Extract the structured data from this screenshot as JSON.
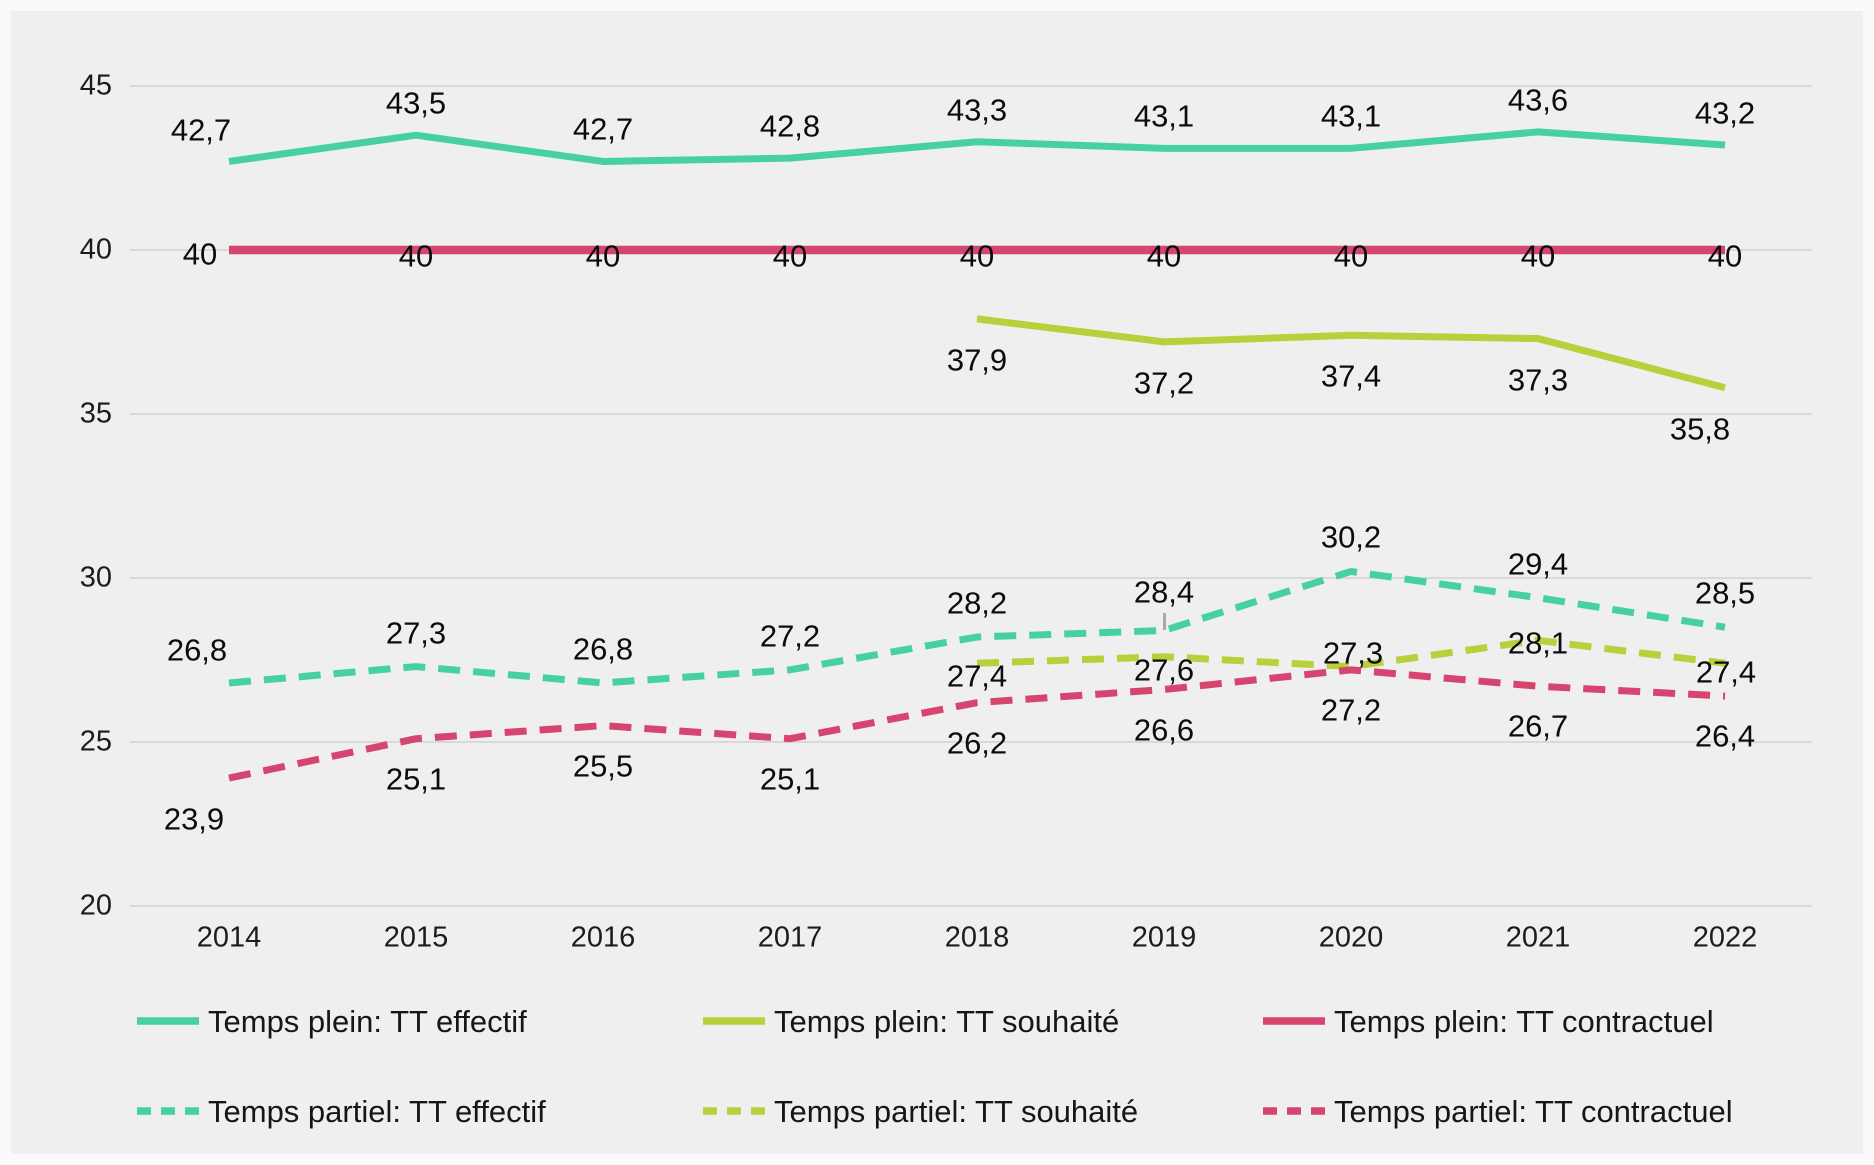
{
  "chart_data": {
    "type": "line",
    "title": "",
    "x": [
      2014,
      2015,
      2016,
      2017,
      2018,
      2019,
      2020,
      2021,
      2022
    ],
    "series": [
      {
        "name": "Temps plein: TT effectif",
        "style": "solid",
        "color": "#47d1a3",
        "values": [
          42.7,
          43.5,
          42.7,
          42.8,
          43.3,
          43.1,
          43.1,
          43.6,
          43.2
        ]
      },
      {
        "name": "Temps plein: TT souhaité",
        "style": "solid",
        "color": "#b9cf3b",
        "values": [
          null,
          null,
          null,
          null,
          37.9,
          37.2,
          37.4,
          37.3,
          35.8
        ]
      },
      {
        "name": "Temps plein: TT contractuel",
        "style": "solid",
        "color": "#d64470",
        "values": [
          40,
          40,
          40,
          40,
          40,
          40,
          40,
          40,
          40
        ]
      },
      {
        "name": "Temps partiel: TT effectif",
        "style": "dashed",
        "color": "#47d1a3",
        "values": [
          26.8,
          27.3,
          26.8,
          27.2,
          28.2,
          28.4,
          30.2,
          29.4,
          28.5
        ]
      },
      {
        "name": "Temps partiel: TT souhaité",
        "style": "dashed",
        "color": "#b9cf3b",
        "values": [
          null,
          null,
          null,
          null,
          27.4,
          27.6,
          27.3,
          28.1,
          27.4
        ]
      },
      {
        "name": "Temps partiel: TT contractuel",
        "style": "dashed",
        "color": "#d64470",
        "values": [
          23.9,
          25.1,
          25.5,
          25.1,
          26.2,
          26.6,
          27.2,
          26.7,
          26.4
        ]
      }
    ],
    "ylim": [
      20,
      45
    ],
    "yticks": [
      45,
      40,
      35,
      30,
      25,
      20
    ],
    "grid": "horizontal",
    "gridline_color": "#d9d9d9",
    "background_color": "#efefef",
    "legend_position": "bottom",
    "legend_rows": [
      [
        0,
        1,
        2
      ],
      [
        3,
        4,
        5
      ]
    ],
    "decimal_separator": ",",
    "data_labels": true
  }
}
